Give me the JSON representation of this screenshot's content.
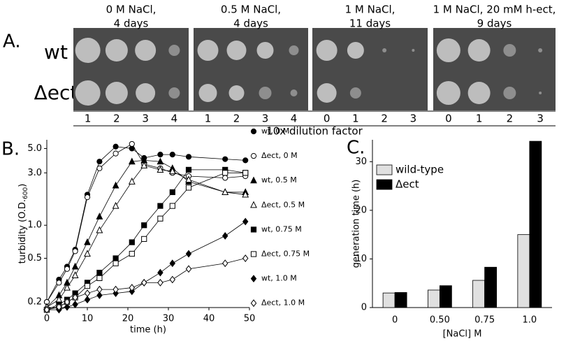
{
  "panel_a": {
    "label": "A.",
    "rows": [
      "wt",
      "Δect"
    ],
    "plates": [
      {
        "title": [
          "0 M NaCl,",
          "4 days"
        ],
        "dilutions": [
          1,
          2,
          3,
          4
        ]
      },
      {
        "title": [
          "0.5 M NaCl,",
          "4 days"
        ],
        "dilutions": [
          1,
          2,
          3,
          4
        ]
      },
      {
        "title": [
          "1 M NaCl,",
          "11 days"
        ],
        "dilutions": [
          0,
          1,
          2,
          3
        ]
      },
      {
        "title": [
          "1 M NaCl, 20 mM h-ect,",
          "9 days"
        ],
        "dilutions": [
          0,
          1,
          2,
          3
        ]
      }
    ],
    "x_label": "10x dilution factor"
  },
  "chart_data": [
    {
      "type": "line",
      "panel_label": "B.",
      "x_label": "time (h)",
      "y_label": {
        "text": "turbidity (O.D.",
        "subscript": "600",
        "suffix": ")"
      },
      "log_y": true,
      "xlim": [
        0,
        50
      ],
      "xticks": [
        0,
        10,
        20,
        30,
        40,
        50
      ],
      "ylim": [
        0.178,
        6.0
      ],
      "yticks": [
        {
          "value": 5,
          "label": "5.0"
        },
        {
          "value": 3,
          "label": "3.0"
        },
        {
          "value": 1,
          "label": "1.0"
        },
        0.5,
        0.2
      ],
      "x": [
        0,
        3,
        5,
        7,
        10,
        13,
        17,
        21,
        24,
        28,
        31,
        35,
        44,
        49
      ],
      "series": [
        {
          "name": "wt, 0 M",
          "color": "#000000",
          "marker": "circle",
          "filled": true,
          "values": [
            0.2,
            0.32,
            0.42,
            0.6,
            1.9,
            3.8,
            5.2,
            5.0,
            4.1,
            4.4,
            4.4,
            4.2,
            4.0,
            3.9
          ]
        },
        {
          "name": "Δect, 0 M",
          "color": "#000000",
          "marker": "circle",
          "filled": false,
          "values": [
            0.2,
            0.3,
            0.4,
            0.58,
            1.8,
            3.3,
            4.5,
            5.5,
            3.6,
            3.3,
            3.0,
            2.8,
            2.7,
            2.8
          ]
        },
        {
          "name": "wt, 0.5 M",
          "color": "#000000",
          "marker": "triangle",
          "filled": true,
          "values": [
            0.18,
            0.23,
            0.3,
            0.42,
            0.7,
            1.2,
            2.3,
            3.8,
            3.9,
            3.8,
            3.3,
            2.5,
            2.0,
            2.0
          ]
        },
        {
          "name": "Δect, 0.5 M",
          "color": "#000000",
          "marker": "triangle",
          "filled": false,
          "values": [
            0.18,
            0.21,
            0.27,
            0.35,
            0.55,
            0.9,
            1.5,
            2.5,
            3.5,
            3.2,
            3.1,
            2.6,
            2.0,
            1.9
          ]
        },
        {
          "name": "wt, 0.75 M",
          "color": "#000000",
          "marker": "square",
          "filled": true,
          "values": [
            0.17,
            0.19,
            0.21,
            0.24,
            0.3,
            0.37,
            0.5,
            0.7,
            1.0,
            1.5,
            2.0,
            3.2,
            3.2,
            3.0
          ]
        },
        {
          "name": "Δect, 0.75 M",
          "color": "#000000",
          "marker": "square",
          "filled": false,
          "values": [
            0.17,
            0.18,
            0.2,
            0.22,
            0.28,
            0.33,
            0.45,
            0.55,
            0.75,
            1.15,
            1.5,
            2.2,
            3.0,
            3.0
          ]
        },
        {
          "name": "wt, 1.0 M",
          "color": "#000000",
          "marker": "diamond",
          "filled": true,
          "values": [
            0.17,
            0.17,
            0.18,
            0.19,
            0.21,
            0.23,
            0.24,
            0.25,
            0.3,
            0.37,
            0.45,
            0.55,
            0.8,
            1.08
          ]
        },
        {
          "name": "Δect, 1.0 M",
          "color": "#000000",
          "marker": "diamond",
          "filled": false,
          "values": [
            0.17,
            0.18,
            0.2,
            0.22,
            0.24,
            0.26,
            0.26,
            0.27,
            0.3,
            0.3,
            0.32,
            0.4,
            0.45,
            0.5
          ]
        }
      ]
    },
    {
      "type": "bar",
      "panel_label": "C.",
      "x_label": "[NaCl] M",
      "y_label": "generation time (h)",
      "categories": [
        "0",
        "0.50",
        "0.75",
        "1.0"
      ],
      "ylim": [
        0,
        34.5
      ],
      "yticks": [
        0,
        10,
        20,
        30
      ],
      "legend": "upper-left",
      "series": [
        {
          "name": "wild-type",
          "color": "#e0e0e0",
          "values": [
            3.0,
            3.6,
            5.6,
            15.0
          ]
        },
        {
          "name": "Δect",
          "color": "#000000",
          "values": [
            3.1,
            4.5,
            8.3,
            34.2
          ]
        }
      ]
    }
  ]
}
